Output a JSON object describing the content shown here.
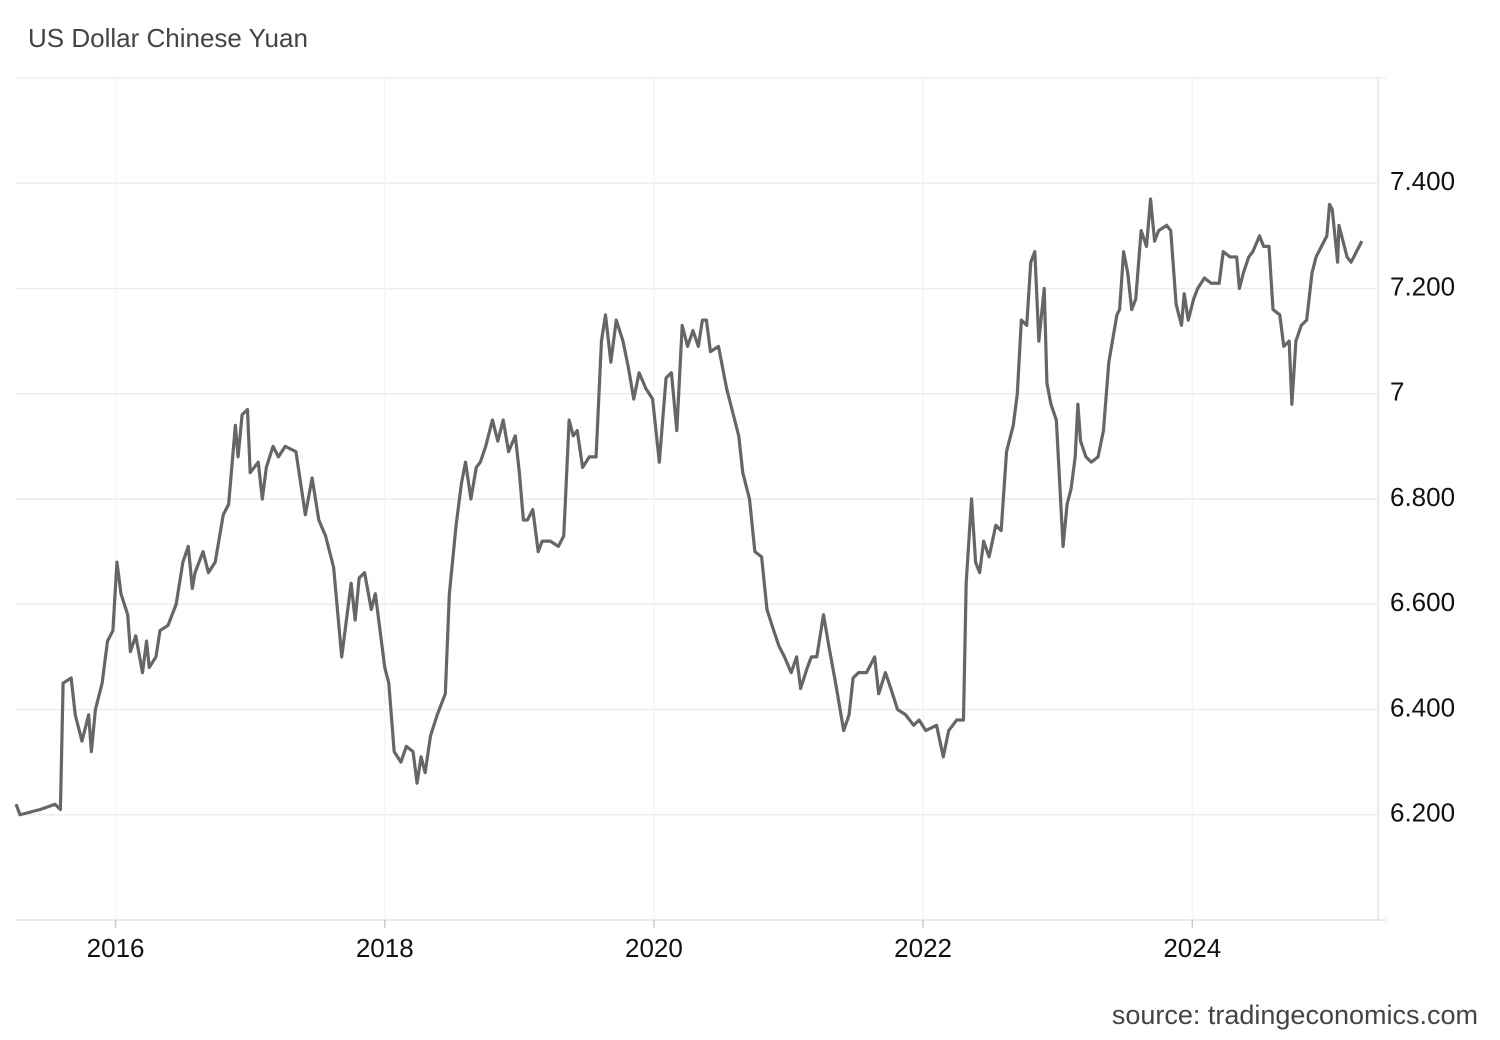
{
  "chart_data": {
    "type": "line",
    "title": "US Dollar Chinese Yuan",
    "source": "source: tradingeconomics.com",
    "x": [
      2015.26,
      2015.29,
      2015.44,
      2015.55,
      2015.59,
      2015.61,
      2015.67,
      2015.7,
      2015.75,
      2015.8,
      2015.82,
      2015.85,
      2015.9,
      2015.94,
      2015.98,
      2016.01,
      2016.04,
      2016.09,
      2016.11,
      2016.15,
      2016.2,
      2016.23,
      2016.25,
      2016.3,
      2016.33,
      2016.39,
      2016.45,
      2016.5,
      2016.54,
      2016.57,
      2016.59,
      2016.65,
      2016.69,
      2016.74,
      2016.8,
      2016.84,
      2016.89,
      2016.91,
      2016.94,
      2016.98,
      2017.0,
      2017.06,
      2017.09,
      2017.12,
      2017.17,
      2017.21,
      2017.26,
      2017.34,
      2017.41,
      2017.46,
      2017.51,
      2017.56,
      2017.62,
      2017.68,
      2017.75,
      2017.78,
      2017.81,
      2017.85,
      2017.9,
      2017.93,
      2018.0,
      2018.03,
      2018.07,
      2018.12,
      2018.16,
      2018.21,
      2018.24,
      2018.27,
      2018.3,
      2018.34,
      2018.39,
      2018.45,
      2018.48,
      2018.53,
      2018.57,
      2018.6,
      2018.64,
      2018.68,
      2018.71,
      2018.75,
      2018.8,
      2018.84,
      2018.88,
      2018.92,
      2018.97,
      2019.0,
      2019.03,
      2019.06,
      2019.1,
      2019.14,
      2019.17,
      2019.23,
      2019.29,
      2019.33,
      2019.37,
      2019.4,
      2019.43,
      2019.47,
      2019.52,
      2019.57,
      2019.61,
      2019.64,
      2019.68,
      2019.72,
      2019.77,
      2019.81,
      2019.85,
      2019.89,
      2019.94,
      2019.99,
      2020.04,
      2020.09,
      2020.13,
      2020.17,
      2020.21,
      2020.25,
      2020.29,
      2020.33,
      2020.36,
      2020.39,
      2020.42,
      2020.48,
      2020.54,
      2020.57,
      2020.63,
      2020.66,
      2020.71,
      2020.75,
      2020.8,
      2020.84,
      2020.89,
      2020.93,
      2020.97,
      2021.02,
      2021.06,
      2021.09,
      2021.14,
      2021.17,
      2021.21,
      2021.26,
      2021.3,
      2021.35,
      2021.41,
      2021.45,
      2021.48,
      2021.52,
      2021.58,
      2021.64,
      2021.67,
      2021.72,
      2021.76,
      2021.81,
      2021.87,
      2021.93,
      2021.97,
      2022.02,
      2022.1,
      2022.15,
      2022.19,
      2022.25,
      2022.3,
      2022.32,
      2022.36,
      2022.39,
      2022.42,
      2022.45,
      2022.49,
      2022.54,
      2022.58,
      2022.62,
      2022.67,
      2022.7,
      2022.73,
      2022.77,
      2022.8,
      2022.83,
      2022.86,
      2022.9,
      2022.92,
      2022.95,
      2022.99,
      2023.04,
      2023.07,
      2023.1,
      2023.13,
      2023.15,
      2023.17,
      2023.21,
      2023.25,
      2023.3,
      2023.34,
      2023.38,
      2023.44,
      2023.46,
      2023.49,
      2023.52,
      2023.55,
      2023.58,
      2023.62,
      2023.66,
      2023.69,
      2023.72,
      2023.75,
      2023.81,
      2023.84,
      2023.88,
      2023.92,
      2023.94,
      2023.97,
      2024.01,
      2024.04,
      2024.09,
      2024.14,
      2024.2,
      2024.23,
      2024.28,
      2024.33,
      2024.35,
      2024.38,
      2024.42,
      2024.45,
      2024.5,
      2024.53,
      2024.57,
      2024.6,
      2024.65,
      2024.68,
      2024.72,
      2024.74,
      2024.77,
      2024.81,
      2024.85,
      2024.89,
      2024.92,
      2024.96,
      2025.0,
      2025.02,
      2025.04,
      2025.08,
      2025.09,
      2025.12,
      2025.15,
      2025.18,
      2025.22,
      2025.26
    ],
    "values": [
      6.22,
      6.2,
      6.21,
      6.22,
      6.21,
      6.45,
      6.46,
      6.39,
      6.34,
      6.39,
      6.32,
      6.4,
      6.45,
      6.53,
      6.55,
      6.68,
      6.62,
      6.58,
      6.51,
      6.54,
      6.47,
      6.53,
      6.48,
      6.5,
      6.55,
      6.56,
      6.6,
      6.68,
      6.71,
      6.63,
      6.66,
      6.7,
      6.66,
      6.68,
      6.77,
      6.79,
      6.94,
      6.88,
      6.96,
      6.97,
      6.85,
      6.87,
      6.8,
      6.86,
      6.9,
      6.88,
      6.9,
      6.89,
      6.77,
      6.84,
      6.76,
      6.73,
      6.67,
      6.5,
      6.64,
      6.57,
      6.65,
      6.66,
      6.59,
      6.62,
      6.48,
      6.45,
      6.32,
      6.3,
      6.33,
      6.32,
      6.26,
      6.31,
      6.28,
      6.35,
      6.39,
      6.43,
      6.62,
      6.75,
      6.83,
      6.87,
      6.8,
      6.86,
      6.87,
      6.9,
      6.95,
      6.91,
      6.95,
      6.89,
      6.92,
      6.85,
      6.76,
      6.76,
      6.78,
      6.7,
      6.72,
      6.72,
      6.71,
      6.73,
      6.95,
      6.92,
      6.93,
      6.86,
      6.88,
      6.88,
      7.1,
      7.15,
      7.06,
      7.14,
      7.1,
      7.05,
      6.99,
      7.04,
      7.01,
      6.99,
      6.87,
      7.03,
      7.04,
      6.93,
      7.13,
      7.09,
      7.12,
      7.09,
      7.14,
      7.14,
      7.08,
      7.09,
      7.01,
      6.98,
      6.92,
      6.85,
      6.8,
      6.7,
      6.69,
      6.59,
      6.55,
      6.52,
      6.5,
      6.47,
      6.5,
      6.44,
      6.48,
      6.5,
      6.5,
      6.58,
      6.52,
      6.45,
      6.36,
      6.39,
      6.46,
      6.47,
      6.47,
      6.5,
      6.43,
      6.47,
      6.44,
      6.4,
      6.39,
      6.37,
      6.38,
      6.36,
      6.37,
      6.31,
      6.36,
      6.38,
      6.38,
      6.64,
      6.8,
      6.68,
      6.66,
      6.72,
      6.69,
      6.75,
      6.74,
      6.89,
      6.94,
      7.0,
      7.14,
      7.13,
      7.25,
      7.27,
      7.1,
      7.2,
      7.02,
      6.98,
      6.95,
      6.71,
      6.79,
      6.82,
      6.88,
      6.98,
      6.91,
      6.88,
      6.87,
      6.88,
      6.93,
      7.06,
      7.15,
      7.16,
      7.27,
      7.23,
      7.16,
      7.18,
      7.31,
      7.28,
      7.37,
      7.29,
      7.31,
      7.32,
      7.31,
      7.17,
      7.13,
      7.19,
      7.14,
      7.18,
      7.2,
      7.22,
      7.21,
      7.21,
      7.27,
      7.26,
      7.26,
      7.2,
      7.23,
      7.26,
      7.27,
      7.3,
      7.28,
      7.28,
      7.16,
      7.15,
      7.09,
      7.1,
      6.98,
      7.1,
      7.13,
      7.14,
      7.23,
      7.26,
      7.28,
      7.3,
      7.36,
      7.35,
      7.25,
      7.32,
      7.29,
      7.26,
      7.25,
      7.27,
      7.29
    ],
    "color": "#666666",
    "xlim": [
      2015.26,
      2025.38
    ],
    "xticks": [
      2016,
      2018,
      2020,
      2022,
      2024
    ],
    "ylim": [
      6.0,
      7.6
    ],
    "yticks": [
      {
        "value": 6.2,
        "label": "6.200"
      },
      {
        "value": 6.4,
        "label": "6.400"
      },
      {
        "value": 6.6,
        "label": "6.600"
      },
      {
        "value": 6.8,
        "label": "6.800"
      },
      7,
      {
        "value": 7.2,
        "label": "7.200"
      },
      {
        "value": 7.4,
        "label": "7.400"
      }
    ],
    "grid": true
  }
}
